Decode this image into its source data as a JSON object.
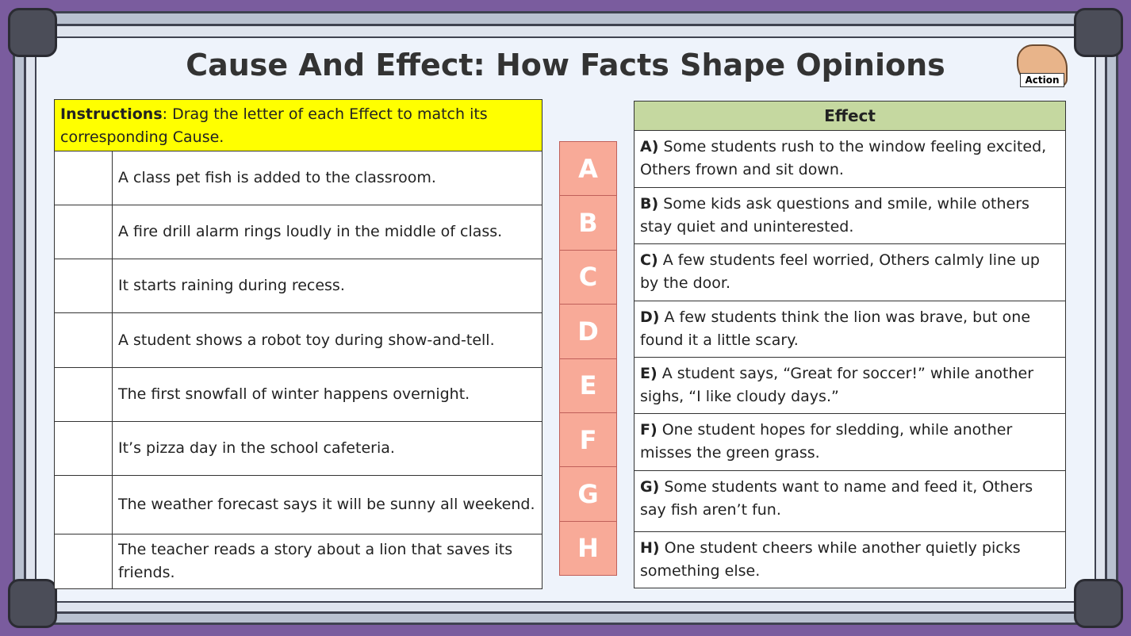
{
  "header": {
    "title": "Cause And Effect: How Facts Shape Opinions",
    "badge": "Action"
  },
  "instructions": {
    "label": "Instructions",
    "text": ": Drag the letter of each Effect to match its corresponding Cause."
  },
  "causes": [
    "A class pet fish is added to the classroom.",
    "A fire drill alarm rings loudly in the middle of class.",
    "It starts raining during recess.",
    "A student shows a robot toy during show-and-tell.",
    "The first snowfall of winter happens overnight.",
    "It’s pizza day in the school cafeteria.",
    "The weather forecast says it will be sunny all weekend.",
    "The teacher reads a story about a lion that saves its friends."
  ],
  "letters": [
    "A",
    "B",
    "C",
    "D",
    "E",
    "F",
    "G",
    "H"
  ],
  "effects": {
    "header": "Effect",
    "rows": [
      {
        "letter": "A)",
        "text": "Some students rush to the window feeling excited, Others frown and sit down."
      },
      {
        "letter": "B)",
        "text": "Some kids ask questions and smile, while others stay quiet and uninterested."
      },
      {
        "letter": "C)",
        "text": "A few students feel worried, Others calmly line up by the door."
      },
      {
        "letter": "D)",
        "text": "A few students think the lion was brave, but one found it a little scary."
      },
      {
        "letter": "E)",
        "text": "A student says, “Great for soccer!” while another sighs, “I like cloudy days.”"
      },
      {
        "letter": "F)",
        "text": "One student hopes for sledding, while another misses the green grass."
      },
      {
        "letter": "G)",
        "text": "Some students want to name and feed it, Others say fish aren’t fun."
      },
      {
        "letter": "H)",
        "text": "One student cheers while another quietly picks something else."
      }
    ]
  }
}
